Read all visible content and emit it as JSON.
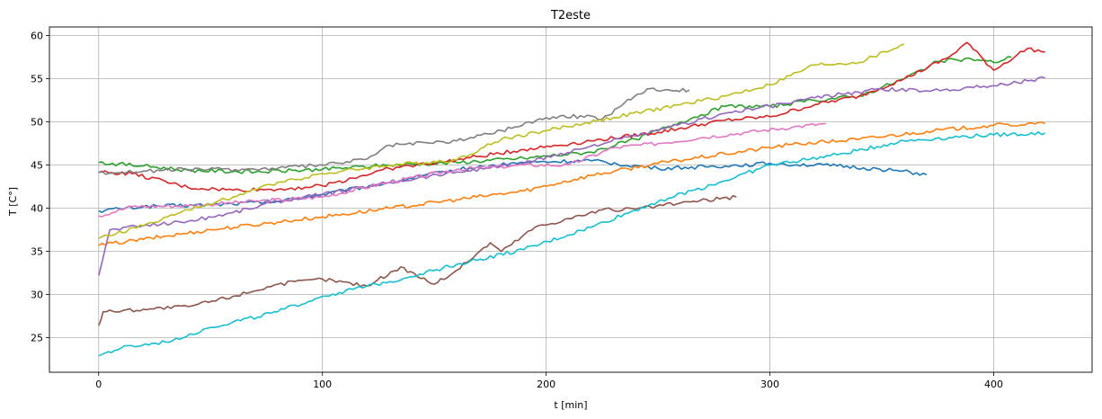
{
  "chart_data": {
    "type": "line",
    "title": "T2este",
    "xlabel": "t [min]",
    "ylabel": "T [C°]",
    "xlim": [
      -22,
      444
    ],
    "ylim": [
      21,
      61
    ],
    "xticks": [
      0,
      100,
      200,
      300,
      400
    ],
    "yticks": [
      25,
      30,
      35,
      40,
      45,
      50,
      55,
      60
    ],
    "grid": true,
    "legend": "none",
    "series": [
      {
        "color": "#1f77b4",
        "points": [
          [
            0,
            39.7
          ],
          [
            20,
            40.2
          ],
          [
            50,
            40.4
          ],
          [
            80,
            40.8
          ],
          [
            100,
            41.6
          ],
          [
            130,
            43.0
          ],
          [
            160,
            44.5
          ],
          [
            190,
            45.3
          ],
          [
            220,
            45.5
          ],
          [
            250,
            44.6
          ],
          [
            280,
            44.9
          ],
          [
            300,
            45.2
          ],
          [
            330,
            44.9
          ],
          [
            355,
            44.4
          ],
          [
            370,
            43.9
          ]
        ]
      },
      {
        "color": "#ff7f0e",
        "points": [
          [
            0,
            35.7
          ],
          [
            20,
            36.4
          ],
          [
            50,
            37.5
          ],
          [
            80,
            38.4
          ],
          [
            100,
            39.0
          ],
          [
            130,
            40.0
          ],
          [
            160,
            41.0
          ],
          [
            190,
            42.0
          ],
          [
            220,
            43.8
          ],
          [
            250,
            45.2
          ],
          [
            280,
            46.3
          ],
          [
            310,
            47.4
          ],
          [
            340,
            48.0
          ],
          [
            370,
            48.9
          ],
          [
            400,
            49.6
          ],
          [
            423,
            49.8
          ]
        ]
      },
      {
        "color": "#2ca02c",
        "points": [
          [
            0,
            45.3
          ],
          [
            20,
            44.9
          ],
          [
            40,
            44.4
          ],
          [
            70,
            44.2
          ],
          [
            100,
            44.5
          ],
          [
            130,
            45.0
          ],
          [
            160,
            45.3
          ],
          [
            190,
            45.8
          ],
          [
            220,
            46.5
          ],
          [
            240,
            48.0
          ],
          [
            260,
            50.0
          ],
          [
            280,
            51.8
          ],
          [
            300,
            51.8
          ],
          [
            320,
            52.5
          ],
          [
            340,
            53.0
          ],
          [
            360,
            55.0
          ],
          [
            375,
            57.0
          ],
          [
            390,
            57.3
          ],
          [
            400,
            56.9
          ],
          [
            408,
            57.5
          ]
        ]
      },
      {
        "color": "#d62728",
        "points": [
          [
            0,
            44.2
          ],
          [
            15,
            44.0
          ],
          [
            40,
            42.4
          ],
          [
            60,
            42.1
          ],
          [
            80,
            42.2
          ],
          [
            100,
            42.6
          ],
          [
            130,
            44.6
          ],
          [
            160,
            45.6
          ],
          [
            190,
            46.8
          ],
          [
            220,
            47.8
          ],
          [
            250,
            48.8
          ],
          [
            280,
            50.2
          ],
          [
            300,
            50.6
          ],
          [
            320,
            52.0
          ],
          [
            340,
            53.0
          ],
          [
            360,
            55.0
          ],
          [
            380,
            57.5
          ],
          [
            388,
            59.2
          ],
          [
            400,
            56.0
          ],
          [
            415,
            58.5
          ],
          [
            423,
            58.1
          ]
        ]
      },
      {
        "color": "#9467bd",
        "points": [
          [
            0,
            32.2
          ],
          [
            5,
            37.5
          ],
          [
            20,
            38.0
          ],
          [
            40,
            38.5
          ],
          [
            60,
            39.5
          ],
          [
            80,
            40.8
          ],
          [
            100,
            41.6
          ],
          [
            130,
            43.0
          ],
          [
            160,
            44.2
          ],
          [
            190,
            45.2
          ],
          [
            220,
            47.2
          ],
          [
            250,
            49.0
          ],
          [
            280,
            51.0
          ],
          [
            300,
            51.8
          ],
          [
            320,
            52.8
          ],
          [
            350,
            53.8
          ],
          [
            370,
            53.6
          ],
          [
            400,
            54.2
          ],
          [
            423,
            55.1
          ]
        ]
      },
      {
        "color": "#8c564b",
        "points": [
          [
            0,
            26.4
          ],
          [
            2,
            28.0
          ],
          [
            20,
            28.3
          ],
          [
            40,
            28.6
          ],
          [
            60,
            29.8
          ],
          [
            80,
            31.2
          ],
          [
            100,
            31.8
          ],
          [
            120,
            31.0
          ],
          [
            135,
            33.2
          ],
          [
            150,
            31.2
          ],
          [
            160,
            32.8
          ],
          [
            175,
            36.0
          ],
          [
            180,
            35.0
          ],
          [
            195,
            37.8
          ],
          [
            210,
            38.8
          ],
          [
            225,
            39.8
          ],
          [
            240,
            39.9
          ],
          [
            260,
            40.6
          ],
          [
            285,
            41.3
          ]
        ]
      },
      {
        "color": "#e377c2",
        "points": [
          [
            0,
            39.1
          ],
          [
            15,
            40.2
          ],
          [
            40,
            40.3
          ],
          [
            70,
            40.8
          ],
          [
            100,
            41.3
          ],
          [
            130,
            43.0
          ],
          [
            160,
            44.5
          ],
          [
            190,
            45.0
          ],
          [
            210,
            45.0
          ],
          [
            230,
            47.0
          ],
          [
            250,
            47.5
          ],
          [
            270,
            48.2
          ],
          [
            290,
            48.8
          ],
          [
            310,
            49.4
          ],
          [
            325,
            49.8
          ]
        ]
      },
      {
        "color": "#7f7f7f",
        "points": [
          [
            0,
            44.1
          ],
          [
            20,
            44.3
          ],
          [
            40,
            44.5
          ],
          [
            70,
            44.5
          ],
          [
            100,
            45.0
          ],
          [
            120,
            45.7
          ],
          [
            130,
            47.3
          ],
          [
            160,
            47.8
          ],
          [
            180,
            49.0
          ],
          [
            200,
            50.5
          ],
          [
            220,
            50.7
          ],
          [
            225,
            50.3
          ],
          [
            235,
            52.2
          ],
          [
            245,
            53.8
          ],
          [
            264,
            53.7
          ]
        ]
      },
      {
        "color": "#bcbd22",
        "points": [
          [
            0,
            36.5
          ],
          [
            20,
            38.0
          ],
          [
            40,
            39.8
          ],
          [
            60,
            41.3
          ],
          [
            80,
            43.0
          ],
          [
            100,
            44.0
          ],
          [
            130,
            45.0
          ],
          [
            160,
            45.6
          ],
          [
            180,
            48.0
          ],
          [
            200,
            49.0
          ],
          [
            230,
            50.5
          ],
          [
            260,
            52.0
          ],
          [
            280,
            53.0
          ],
          [
            300,
            54.3
          ],
          [
            320,
            56.6
          ],
          [
            340,
            56.9
          ],
          [
            360,
            59.0
          ]
        ]
      },
      {
        "color": "#17becf",
        "points": [
          [
            0,
            22.9
          ],
          [
            10,
            23.8
          ],
          [
            30,
            24.5
          ],
          [
            50,
            26.2
          ],
          [
            80,
            28.0
          ],
          [
            100,
            29.8
          ],
          [
            130,
            31.5
          ],
          [
            160,
            33.5
          ],
          [
            190,
            35.2
          ],
          [
            220,
            37.8
          ],
          [
            250,
            40.8
          ],
          [
            280,
            43.2
          ],
          [
            300,
            45.0
          ],
          [
            330,
            46.2
          ],
          [
            360,
            47.8
          ],
          [
            380,
            48.2
          ],
          [
            400,
            48.5
          ],
          [
            423,
            48.7
          ]
        ]
      }
    ]
  }
}
